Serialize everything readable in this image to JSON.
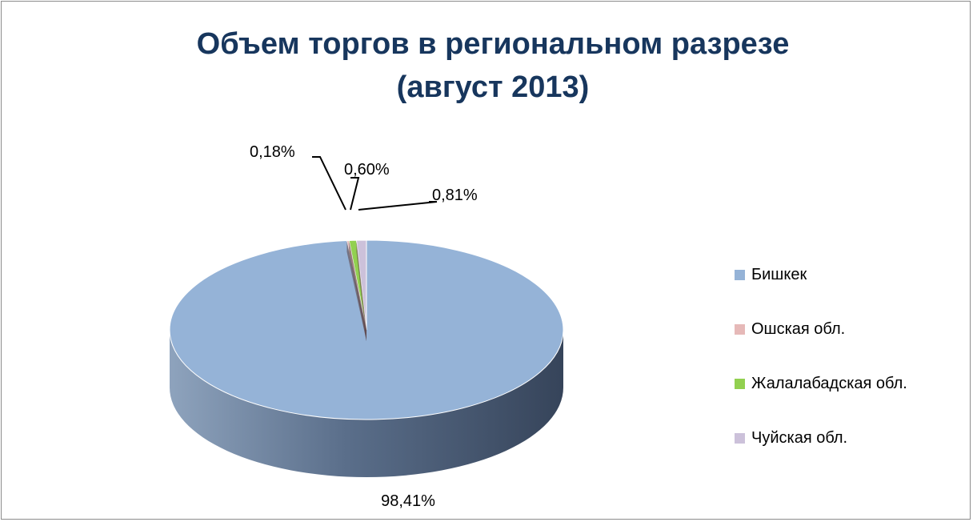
{
  "chart_data": {
    "type": "pie",
    "title_line1": "Объем торгов в региональном разрезе",
    "title_line2": "(август 2013)",
    "categories": [
      "Бишкек",
      "Ошская обл.",
      "Жалалабадская обл.",
      "Чуйская обл."
    ],
    "values": [
      98.41,
      0.18,
      0.6,
      0.81
    ],
    "data_labels": [
      "98,41%",
      "0,18%",
      "0,60%",
      "0,81%"
    ],
    "colors": [
      "#95b3d7",
      "#e6b9b8",
      "#92d050",
      "#ccc1da"
    ],
    "legend_position": "right",
    "style": "3d"
  }
}
